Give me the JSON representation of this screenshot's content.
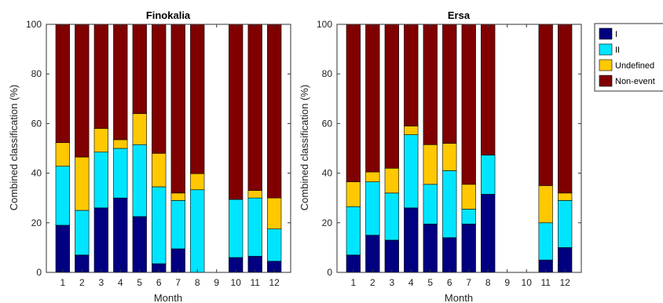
{
  "legend": {
    "items": [
      {
        "label": "I",
        "color": "#000080"
      },
      {
        "label": "II",
        "color": "#00E5FF"
      },
      {
        "label": "Undefined",
        "color": "#FFC800"
      },
      {
        "label": "Non-event",
        "color": "#800000"
      }
    ]
  },
  "chart_data": [
    {
      "type": "bar",
      "stacked": true,
      "title": "Finokalia",
      "xlabel": "Month",
      "ylabel": "Combined classification (%)",
      "ylim": [
        0,
        100
      ],
      "yticks": [
        "0",
        "20",
        "40",
        "60",
        "80",
        "100"
      ],
      "categories": [
        "1",
        "2",
        "3",
        "4",
        "5",
        "6",
        "7",
        "8",
        "9",
        "10",
        "11",
        "12"
      ],
      "series": [
        {
          "name": "I",
          "values": [
            19,
            7,
            26,
            30,
            22.5,
            3.5,
            9.5,
            0,
            0,
            6,
            6.5,
            4.5
          ]
        },
        {
          "name": "II",
          "values": [
            23.8,
            18,
            22.5,
            20,
            29,
            31,
            19.5,
            33.3,
            0,
            23.4,
            23.5,
            13
          ]
        },
        {
          "name": "Undefined",
          "values": [
            9.5,
            21.5,
            9.5,
            3.5,
            12.5,
            13.5,
            3,
            6.5,
            0,
            0,
            3,
            12.5
          ]
        },
        {
          "name": "Non-event",
          "values": [
            47.7,
            53.5,
            42,
            46.5,
            36,
            52,
            68,
            60.2,
            0,
            70.6,
            67,
            70
          ]
        }
      ]
    },
    {
      "type": "bar",
      "stacked": true,
      "title": "Ersa",
      "xlabel": "Month",
      "ylabel": "Combined classification (%)",
      "ylim": [
        0,
        100
      ],
      "yticks": [
        "0",
        "20",
        "40",
        "60",
        "80",
        "100"
      ],
      "categories": [
        "1",
        "2",
        "3",
        "4",
        "5",
        "6",
        "7",
        "8",
        "9",
        "10",
        "11",
        "12"
      ],
      "series": [
        {
          "name": "I",
          "values": [
            7,
            15,
            13,
            26,
            19.5,
            14,
            19.5,
            31.5,
            0,
            0,
            5,
            10
          ]
        },
        {
          "name": "II",
          "values": [
            19.5,
            21.5,
            19,
            29.5,
            16,
            27,
            6,
            15.8,
            0,
            0,
            15,
            19
          ]
        },
        {
          "name": "Undefined",
          "values": [
            10,
            4,
            10,
            3.5,
            16,
            11,
            10,
            0,
            0,
            0,
            15,
            3
          ]
        },
        {
          "name": "Non-event",
          "values": [
            63.5,
            59.5,
            58,
            41,
            48.5,
            48,
            64.5,
            52.7,
            0,
            0,
            65,
            68
          ]
        }
      ]
    }
  ]
}
